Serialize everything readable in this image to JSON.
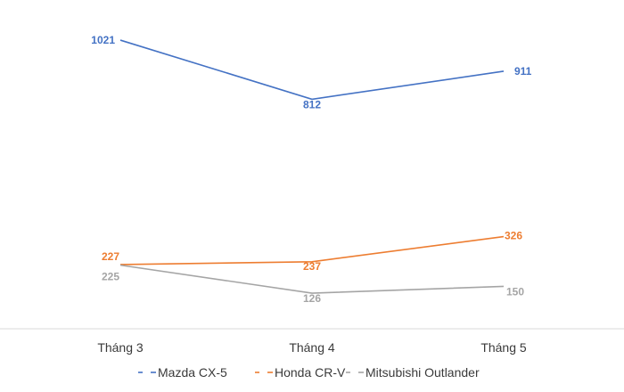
{
  "chart_data": {
    "type": "line",
    "categories": [
      "Tháng 3",
      "Tháng 4",
      "Tháng 5"
    ],
    "series": [
      {
        "name": "Mazda CX-5",
        "values": [
          1021,
          812,
          911
        ],
        "color": "#4472C4"
      },
      {
        "name": "Honda CR-V",
        "values": [
          227,
          237,
          326
        ],
        "color": "#ED7D31"
      },
      {
        "name": "Mitsubishi Outlander",
        "values": [
          225,
          126,
          150
        ],
        "color": "#A5A5A5"
      }
    ],
    "title": "",
    "xlabel": "",
    "ylabel": "",
    "ylim": [
      0,
      1100
    ],
    "grid": false,
    "legend_position": "bottom",
    "data_labels": true
  }
}
